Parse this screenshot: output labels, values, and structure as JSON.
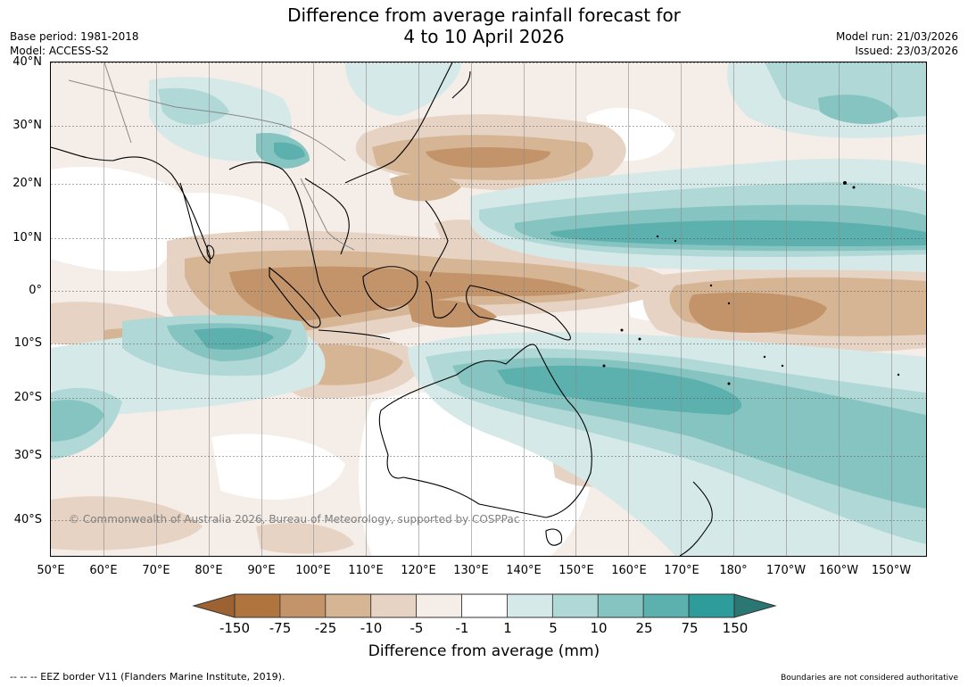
{
  "title": {
    "line1": "Difference from average rainfall forecast for",
    "line2": "4 to 10 April 2026"
  },
  "meta": {
    "base_period": "Base period: 1981-2018",
    "model": "Model: ACCESS-S2",
    "model_run": "Model run: 21/03/2026",
    "issued": "Issued: 23/03/2026"
  },
  "map": {
    "lat_labels": [
      "40°N",
      "30°N",
      "20°N",
      "10°N",
      "0°",
      "10°S",
      "20°S",
      "30°S",
      "40°S"
    ],
    "lon_labels": [
      "50°E",
      "60°E",
      "70°E",
      "80°E",
      "90°E",
      "100°E",
      "110°E",
      "120°E",
      "130°E",
      "140°E",
      "150°E",
      "160°E",
      "170°E",
      "180°",
      "170°W",
      "160°W",
      "150°W"
    ],
    "copyright": "© Commonwealth of Australia 2026, Bureau of Meteorology, supported by COSPPac"
  },
  "colorbar": {
    "ticks": [
      "-150",
      "-75",
      "-25",
      "-10",
      "-5",
      "-1",
      "1",
      "5",
      "10",
      "25",
      "75",
      "150"
    ],
    "colors": [
      "#9c6232",
      "#b0743e",
      "#c39469",
      "#d6b594",
      "#e7d3c3",
      "#f5ede7",
      "#ffffff",
      "#d5e9e8",
      "#b0d8d6",
      "#86c4c2",
      "#5cb0ae",
      "#2e9c9a",
      "#2b7773"
    ],
    "label": "Difference from average (mm)"
  },
  "footer": {
    "left": "--  --  -- EEZ border V11 (Flanders Marine Institute, 2019).",
    "right": "Boundaries are not considered authoritative"
  }
}
